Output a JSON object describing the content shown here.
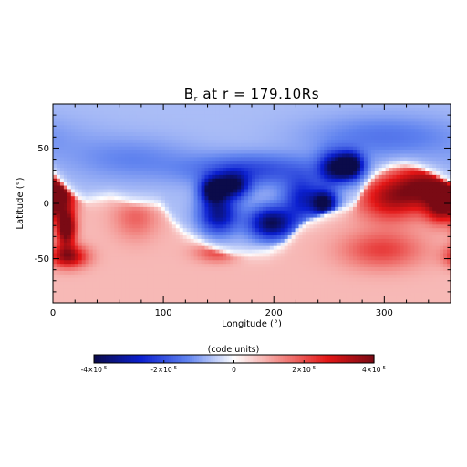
{
  "chart_data": {
    "type": "heatmap",
    "title": "B",
    "title_sub": "r",
    "title_rest": " at r = 179.10Rs",
    "xlabel": "Longitude (°)",
    "ylabel": "Latitude (°)",
    "xlim": [
      0,
      360
    ],
    "ylim": [
      -90,
      90
    ],
    "xticks": [
      {
        "value": 0,
        "label": "0"
      },
      {
        "value": 100,
        "label": "100"
      },
      {
        "value": 200,
        "label": "200"
      },
      {
        "value": 300,
        "label": "300"
      }
    ],
    "yticks": [
      {
        "value": 50,
        "label": "50"
      },
      {
        "value": 0,
        "label": "0"
      },
      {
        "value": -50,
        "label": "-50"
      }
    ],
    "colorbar": {
      "title": "(code units)",
      "range": [
        -4e-05,
        4e-05
      ],
      "colors": [
        "#0b0b4a",
        "#0b1fcf",
        "#5f82ef",
        "#ffffff",
        "#f28a86",
        "#e31616",
        "#7a0a14"
      ],
      "ticks": [
        {
          "value": -4e-05,
          "label": "-4×10",
          "exp": "-5"
        },
        {
          "value": -2e-05,
          "label": "-2×10",
          "exp": "-5"
        },
        {
          "value": 0,
          "label": "0",
          "exp": ""
        },
        {
          "value": 2e-05,
          "label": "2×10",
          "exp": "-5"
        },
        {
          "value": 4e-05,
          "label": "4×10",
          "exp": "-5"
        }
      ]
    },
    "neutral_line": [
      [
        0,
        28
      ],
      [
        10,
        18
      ],
      [
        20,
        8
      ],
      [
        30,
        2
      ],
      [
        40,
        4
      ],
      [
        52,
        6
      ],
      [
        62,
        4
      ],
      [
        70,
        2
      ],
      [
        80,
        1
      ],
      [
        90,
        0
      ],
      [
        98,
        -2
      ],
      [
        104,
        -10
      ],
      [
        110,
        -18
      ],
      [
        118,
        -26
      ],
      [
        128,
        -32
      ],
      [
        140,
        -38
      ],
      [
        152,
        -42
      ],
      [
        164,
        -45
      ],
      [
        178,
        -46
      ],
      [
        195,
        -44
      ],
      [
        208,
        -38
      ],
      [
        215,
        -32
      ],
      [
        222,
        -24
      ],
      [
        230,
        -18
      ],
      [
        240,
        -14
      ],
      [
        250,
        -10
      ],
      [
        262,
        -6
      ],
      [
        272,
        -2
      ],
      [
        278,
        8
      ],
      [
        284,
        18
      ],
      [
        294,
        28
      ],
      [
        306,
        34
      ],
      [
        318,
        36
      ],
      [
        330,
        34
      ],
      [
        345,
        28
      ],
      [
        360,
        20
      ]
    ],
    "features": [
      {
        "lon": 12,
        "lat": -22,
        "sx": 6,
        "sy": 12,
        "value": 4e-05
      },
      {
        "lon": 14,
        "lat": -48,
        "sx": 12,
        "sy": 7,
        "value": 2.8e-05
      },
      {
        "lon": 8,
        "lat": 8,
        "sx": 10,
        "sy": 10,
        "value": 2.2e-05
      },
      {
        "lon": 340,
        "lat": 16,
        "sx": 22,
        "sy": 14,
        "value": 3e-05
      },
      {
        "lon": 304,
        "lat": 4,
        "sx": 20,
        "sy": 14,
        "value": 2.2e-05
      },
      {
        "lon": 352,
        "lat": -4,
        "sx": 10,
        "sy": 10,
        "value": 2.6e-05
      },
      {
        "lon": 298,
        "lat": -42,
        "sx": 26,
        "sy": 12,
        "value": 1.4e-05
      },
      {
        "lon": 150,
        "lat": -44,
        "sx": 14,
        "sy": 6,
        "value": 1.6e-05
      },
      {
        "lon": 75,
        "lat": -12,
        "sx": 14,
        "sy": 14,
        "value": 1e-05
      },
      {
        "lon": 145,
        "lat": 12,
        "sx": 8,
        "sy": 8,
        "value": -3.4e-05
      },
      {
        "lon": 163,
        "lat": 16,
        "sx": 10,
        "sy": 8,
        "value": -3e-05
      },
      {
        "lon": 150,
        "lat": -10,
        "sx": 12,
        "sy": 12,
        "value": -2.6e-05
      },
      {
        "lon": 198,
        "lat": -18,
        "sx": 14,
        "sy": 10,
        "value": -3.2e-05
      },
      {
        "lon": 226,
        "lat": 4,
        "sx": 12,
        "sy": 14,
        "value": -2e-05
      },
      {
        "lon": 255,
        "lat": 32,
        "sx": 10,
        "sy": 10,
        "value": -2.8e-05
      },
      {
        "lon": 270,
        "lat": 34,
        "sx": 8,
        "sy": 8,
        "value": -3.6e-05
      },
      {
        "lon": 246,
        "lat": 0,
        "sx": 8,
        "sy": 8,
        "value": -3.4e-05
      },
      {
        "lon": 180,
        "lat": 30,
        "sx": 40,
        "sy": 10,
        "value": -1.4e-05
      },
      {
        "lon": 70,
        "lat": 40,
        "sx": 40,
        "sy": 14,
        "value": -6e-06
      },
      {
        "lon": 300,
        "lat": 60,
        "sx": 50,
        "sy": 14,
        "value": -8e-06
      }
    ],
    "base_field": {
      "north": -7e-06,
      "south": 8e-06,
      "band_width": 7
    }
  }
}
